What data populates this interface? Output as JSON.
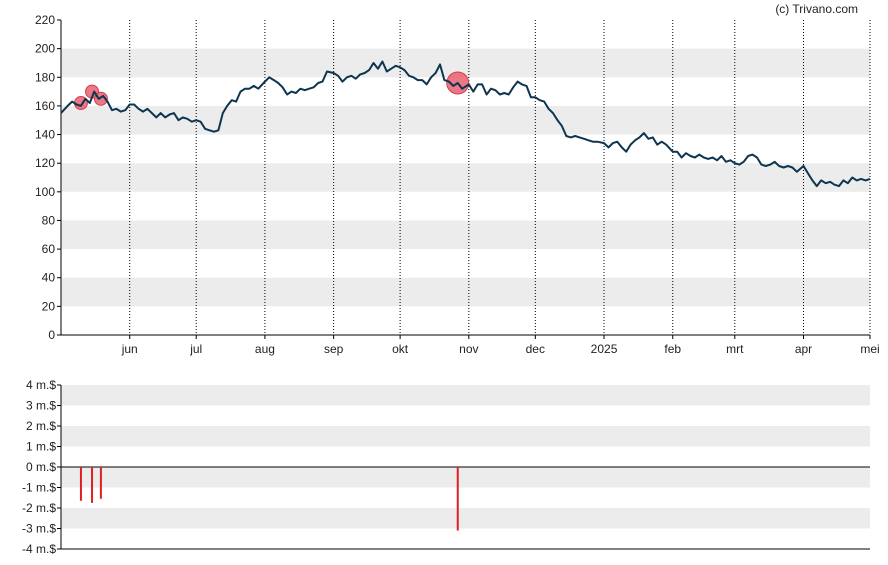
{
  "credit": "(c) Trivano.com",
  "colors": {
    "band": "#ececec",
    "axis": "#000000",
    "line": "#0e3550",
    "marker": "#e8606e",
    "volume_bar": "#e02020",
    "text": "#222222"
  },
  "chart_data": [
    {
      "type": "line",
      "title": "",
      "xlabel": "",
      "ylabel": "",
      "ylim": [
        0,
        220
      ],
      "yticks": [
        0,
        20,
        40,
        60,
        80,
        100,
        120,
        140,
        160,
        180,
        200,
        220
      ],
      "ytick_labels": [
        "0",
        "20",
        "40",
        "60",
        "80",
        "100",
        "120",
        "140",
        "160",
        "180",
        "200",
        "220"
      ],
      "banded_background": true,
      "month_gridlines": "dotted",
      "x_range": [
        "2024-05-01",
        "2025-05-01"
      ],
      "x_ticks": [
        {
          "date": "2024-06-01",
          "label": "jun"
        },
        {
          "date": "2024-07-01",
          "label": "jul"
        },
        {
          "date": "2024-08-01",
          "label": "aug"
        },
        {
          "date": "2024-09-01",
          "label": "sep"
        },
        {
          "date": "2024-10-01",
          "label": "okt"
        },
        {
          "date": "2024-11-01",
          "label": "nov"
        },
        {
          "date": "2024-12-01",
          "label": "dec"
        },
        {
          "date": "2025-01-01",
          "label": "2025"
        },
        {
          "date": "2025-02-01",
          "label": "feb"
        },
        {
          "date": "2025-03-01",
          "label": "mrt"
        },
        {
          "date": "2025-04-01",
          "label": "apr"
        },
        {
          "date": "2025-05-01",
          "label": "mei"
        }
      ],
      "series": [
        {
          "points": [
            [
              "2024-05-01",
              155
            ],
            [
              "2024-05-04",
              160
            ],
            [
              "2024-05-06",
              163
            ],
            [
              "2024-05-08",
              161
            ],
            [
              "2024-05-10",
              160
            ],
            [
              "2024-05-12",
              165
            ],
            [
              "2024-05-14",
              162
            ],
            [
              "2024-05-16",
              170
            ],
            [
              "2024-05-18",
              165
            ],
            [
              "2024-05-20",
              167
            ],
            [
              "2024-05-22",
              163
            ],
            [
              "2024-05-24",
              157
            ],
            [
              "2024-05-26",
              158
            ],
            [
              "2024-05-28",
              156
            ],
            [
              "2024-05-30",
              157
            ],
            [
              "2024-06-01",
              161
            ],
            [
              "2024-06-03",
              161
            ],
            [
              "2024-06-05",
              158
            ],
            [
              "2024-06-07",
              156
            ],
            [
              "2024-06-09",
              158
            ],
            [
              "2024-06-11",
              155
            ],
            [
              "2024-06-13",
              152
            ],
            [
              "2024-06-15",
              155
            ],
            [
              "2024-06-17",
              152
            ],
            [
              "2024-06-19",
              154
            ],
            [
              "2024-06-21",
              155
            ],
            [
              "2024-06-23",
              150
            ],
            [
              "2024-06-25",
              152
            ],
            [
              "2024-06-27",
              151
            ],
            [
              "2024-06-29",
              149
            ],
            [
              "2024-07-01",
              150
            ],
            [
              "2024-07-03",
              149
            ],
            [
              "2024-07-05",
              144
            ],
            [
              "2024-07-07",
              143
            ],
            [
              "2024-07-09",
              142
            ],
            [
              "2024-07-11",
              143
            ],
            [
              "2024-07-13",
              155
            ],
            [
              "2024-07-15",
              160
            ],
            [
              "2024-07-17",
              164
            ],
            [
              "2024-07-19",
              163
            ],
            [
              "2024-07-21",
              170
            ],
            [
              "2024-07-23",
              172
            ],
            [
              "2024-07-25",
              172
            ],
            [
              "2024-07-27",
              174
            ],
            [
              "2024-07-29",
              172
            ],
            [
              "2024-08-01",
              177
            ],
            [
              "2024-08-03",
              180
            ],
            [
              "2024-08-05",
              178
            ],
            [
              "2024-08-07",
              176
            ],
            [
              "2024-08-09",
              173
            ],
            [
              "2024-08-11",
              168
            ],
            [
              "2024-08-13",
              170
            ],
            [
              "2024-08-15",
              169
            ],
            [
              "2024-08-17",
              172
            ],
            [
              "2024-08-19",
              171
            ],
            [
              "2024-08-21",
              172
            ],
            [
              "2024-08-23",
              173
            ],
            [
              "2024-08-25",
              176
            ],
            [
              "2024-08-27",
              177
            ],
            [
              "2024-08-29",
              184
            ],
            [
              "2024-09-01",
              183
            ],
            [
              "2024-09-03",
              181
            ],
            [
              "2024-09-05",
              177
            ],
            [
              "2024-09-07",
              180
            ],
            [
              "2024-09-09",
              181
            ],
            [
              "2024-09-11",
              179
            ],
            [
              "2024-09-13",
              182
            ],
            [
              "2024-09-15",
              183
            ],
            [
              "2024-09-17",
              185
            ],
            [
              "2024-09-19",
              190
            ],
            [
              "2024-09-21",
              186
            ],
            [
              "2024-09-23",
              191
            ],
            [
              "2024-09-25",
              184
            ],
            [
              "2024-09-27",
              186
            ],
            [
              "2024-09-29",
              188
            ],
            [
              "2024-10-01",
              187
            ],
            [
              "2024-10-03",
              185
            ],
            [
              "2024-10-05",
              181
            ],
            [
              "2024-10-07",
              180
            ],
            [
              "2024-10-09",
              178
            ],
            [
              "2024-10-11",
              178
            ],
            [
              "2024-10-13",
              175
            ],
            [
              "2024-10-15",
              180
            ],
            [
              "2024-10-17",
              183
            ],
            [
              "2024-10-19",
              189
            ],
            [
              "2024-10-21",
              178
            ],
            [
              "2024-10-23",
              177
            ],
            [
              "2024-10-25",
              174
            ],
            [
              "2024-10-27",
              176
            ],
            [
              "2024-10-29",
              172
            ],
            [
              "2024-11-01",
              175
            ],
            [
              "2024-11-03",
              170
            ],
            [
              "2024-11-05",
              175
            ],
            [
              "2024-11-07",
              175
            ],
            [
              "2024-11-09",
              168
            ],
            [
              "2024-11-11",
              172
            ],
            [
              "2024-11-13",
              171
            ],
            [
              "2024-11-15",
              168
            ],
            [
              "2024-11-17",
              169
            ],
            [
              "2024-11-19",
              168
            ],
            [
              "2024-11-21",
              173
            ],
            [
              "2024-11-23",
              177
            ],
            [
              "2024-11-25",
              175
            ],
            [
              "2024-11-27",
              174
            ],
            [
              "2024-11-29",
              166
            ],
            [
              "2024-12-01",
              166
            ],
            [
              "2024-12-03",
              164
            ],
            [
              "2024-12-05",
              163
            ],
            [
              "2024-12-07",
              158
            ],
            [
              "2024-12-09",
              155
            ],
            [
              "2024-12-11",
              150
            ],
            [
              "2024-12-13",
              146
            ],
            [
              "2024-12-15",
              139
            ],
            [
              "2024-12-17",
              138
            ],
            [
              "2024-12-19",
              139
            ],
            [
              "2024-12-21",
              138
            ],
            [
              "2024-12-23",
              137
            ],
            [
              "2024-12-25",
              136
            ],
            [
              "2024-12-27",
              135
            ],
            [
              "2024-12-29",
              135
            ],
            [
              "2025-01-01",
              134
            ],
            [
              "2025-01-03",
              131
            ],
            [
              "2025-01-05",
              134
            ],
            [
              "2025-01-07",
              135
            ],
            [
              "2025-01-09",
              131
            ],
            [
              "2025-01-11",
              128
            ],
            [
              "2025-01-13",
              133
            ],
            [
              "2025-01-15",
              136
            ],
            [
              "2025-01-17",
              138
            ],
            [
              "2025-01-19",
              141
            ],
            [
              "2025-01-21",
              137
            ],
            [
              "2025-01-23",
              138
            ],
            [
              "2025-01-25",
              133
            ],
            [
              "2025-01-27",
              135
            ],
            [
              "2025-01-29",
              133
            ],
            [
              "2025-02-01",
              128
            ],
            [
              "2025-02-03",
              128
            ],
            [
              "2025-02-05",
              124
            ],
            [
              "2025-02-07",
              127
            ],
            [
              "2025-02-09",
              125
            ],
            [
              "2025-02-11",
              124
            ],
            [
              "2025-02-13",
              126
            ],
            [
              "2025-02-15",
              124
            ],
            [
              "2025-02-17",
              123
            ],
            [
              "2025-02-19",
              124
            ],
            [
              "2025-02-21",
              122
            ],
            [
              "2025-02-23",
              125
            ],
            [
              "2025-02-25",
              121
            ],
            [
              "2025-02-27",
              122
            ],
            [
              "2025-03-01",
              120
            ],
            [
              "2025-03-03",
              119
            ],
            [
              "2025-03-05",
              121
            ],
            [
              "2025-03-07",
              125
            ],
            [
              "2025-03-09",
              126
            ],
            [
              "2025-03-11",
              124
            ],
            [
              "2025-03-13",
              119
            ],
            [
              "2025-03-15",
              118
            ],
            [
              "2025-03-17",
              119
            ],
            [
              "2025-03-19",
              121
            ],
            [
              "2025-03-21",
              118
            ],
            [
              "2025-03-23",
              117
            ],
            [
              "2025-03-25",
              118
            ],
            [
              "2025-03-27",
              117
            ],
            [
              "2025-03-29",
              114
            ],
            [
              "2025-04-01",
              118
            ],
            [
              "2025-04-03",
              113
            ],
            [
              "2025-04-05",
              108
            ],
            [
              "2025-04-07",
              104
            ],
            [
              "2025-04-09",
              108
            ],
            [
              "2025-04-11",
              106
            ],
            [
              "2025-04-13",
              107
            ],
            [
              "2025-04-15",
              105
            ],
            [
              "2025-04-17",
              104
            ],
            [
              "2025-04-19",
              108
            ],
            [
              "2025-04-21",
              106
            ],
            [
              "2025-04-23",
              110
            ],
            [
              "2025-04-25",
              108
            ],
            [
              "2025-04-27",
              109
            ],
            [
              "2025-04-29",
              108
            ],
            [
              "2025-05-01",
              109
            ]
          ]
        }
      ],
      "markers": [
        {
          "date": "2024-05-10",
          "value": 162,
          "size": "small"
        },
        {
          "date": "2024-05-15",
          "value": 170,
          "size": "small"
        },
        {
          "date": "2024-05-19",
          "value": 165,
          "size": "small"
        },
        {
          "date": "2024-10-27",
          "value": 176,
          "size": "large"
        }
      ]
    },
    {
      "type": "bar",
      "title": "",
      "xlabel": "",
      "ylabel": "",
      "ylim": [
        -4,
        4
      ],
      "yticks": [
        -4,
        -3,
        -2,
        -1,
        0,
        1,
        2,
        3,
        4
      ],
      "ytick_labels": [
        "-4 m.$",
        "-3 m.$",
        "-2 m.$",
        "-1 m.$",
        "0 m.$",
        "1 m.$",
        "2 m.$",
        "3 m.$",
        "4 m.$"
      ],
      "banded_background": true,
      "x_range": [
        "2024-05-01",
        "2025-05-01"
      ],
      "bars": [
        {
          "date": "2024-05-10",
          "value": -1.65
        },
        {
          "date": "2024-05-15",
          "value": -1.75
        },
        {
          "date": "2024-05-19",
          "value": -1.55
        },
        {
          "date": "2024-10-27",
          "value": -3.1
        }
      ]
    }
  ]
}
